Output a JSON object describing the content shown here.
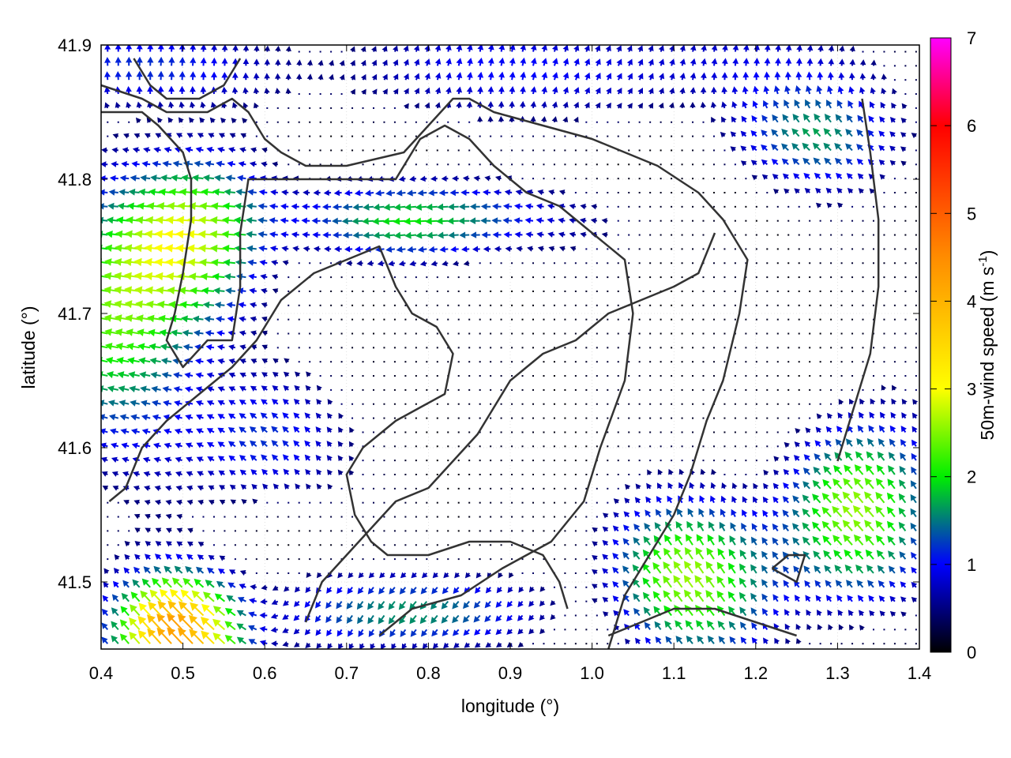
{
  "chart_data": {
    "type": "vector-field",
    "xlabel": "longitude (°)",
    "ylabel": "latitude (°)",
    "xlim": [
      0.4,
      1.4
    ],
    "ylim": [
      41.45,
      41.9
    ],
    "x_ticks": [
      "0.4",
      "0.5",
      "0.6",
      "0.7",
      "0.8",
      "0.9",
      "1.0",
      "1.1",
      "1.2",
      "1.3",
      "1.4"
    ],
    "y_ticks": [
      "41.5",
      "41.6",
      "41.7",
      "41.8",
      "41.9"
    ],
    "colorbar": {
      "label_main": "50m-wind speed (m s",
      "label_sup": "-1",
      "label_end": ")",
      "range": [
        0,
        7
      ],
      "ticks": [
        "0",
        "1",
        "2",
        "3",
        "4",
        "5",
        "6",
        "7"
      ],
      "palette": [
        "#000000",
        "#0000ff",
        "#00ee00",
        "#ffff00",
        "#ff8c00",
        "#ff0000",
        "#ff00ff"
      ]
    },
    "grid": true,
    "contour_color": "#333333",
    "wind_regions": [
      {
        "region": "southwest corner",
        "speed": 4.3,
        "direction": "to NW"
      },
      {
        "region": "west plateau",
        "speed": 2.3,
        "direction": "to W"
      },
      {
        "region": "central channel",
        "speed": 2.0,
        "direction": "to W"
      },
      {
        "region": "central basin",
        "speed": 0.3,
        "direction": "weak"
      },
      {
        "region": "southeast",
        "speed": 2.5,
        "direction": "to NW"
      },
      {
        "region": "north",
        "speed": 1.0,
        "direction": "to N"
      }
    ]
  }
}
